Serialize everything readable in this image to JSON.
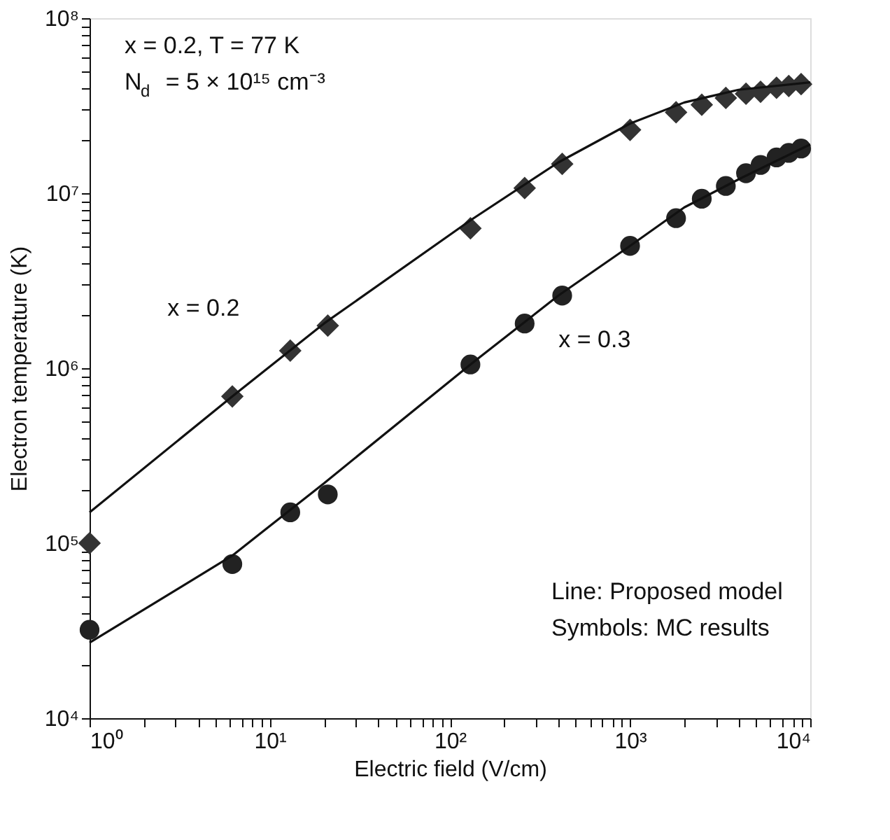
{
  "chart_data": {
    "type": "scatter",
    "xlabel": "Electric field (V/cm)",
    "ylabel": "Electron temperature (K)",
    "log": "xy",
    "xlim": [
      1,
      10000
    ],
    "ylim": [
      10000,
      100000000
    ],
    "xticks": [
      {
        "value": 1,
        "label": "10⁰"
      },
      {
        "value": 2,
        "label": null
      },
      {
        "value": 3,
        "label": null
      },
      {
        "value": 4,
        "label": null
      },
      {
        "value": 5,
        "label": null
      },
      {
        "value": 6,
        "label": null
      },
      {
        "value": 7,
        "label": null
      },
      {
        "value": 8,
        "label": null
      },
      {
        "value": 9,
        "label": null
      },
      {
        "value": 10,
        "label": "10¹"
      },
      {
        "value": 20,
        "label": null
      },
      {
        "value": 30,
        "label": null
      },
      {
        "value": 40,
        "label": null
      },
      {
        "value": 50,
        "label": null
      },
      {
        "value": 60,
        "label": null
      },
      {
        "value": 70,
        "label": null
      },
      {
        "value": 80,
        "label": null
      },
      {
        "value": 90,
        "label": null
      },
      {
        "value": 100,
        "label": "10²"
      },
      {
        "value": 200,
        "label": null
      },
      {
        "value": 300,
        "label": null
      },
      {
        "value": 400,
        "label": null
      },
      {
        "value": 500,
        "label": null
      },
      {
        "value": 600,
        "label": null
      },
      {
        "value": 700,
        "label": null
      },
      {
        "value": 800,
        "label": null
      },
      {
        "value": 900,
        "label": null
      },
      {
        "value": 1000,
        "label": "10³"
      },
      {
        "value": 2000,
        "label": null
      },
      {
        "value": 3000,
        "label": null
      },
      {
        "value": 4000,
        "label": null
      },
      {
        "value": 5000,
        "label": null
      },
      {
        "value": 6000,
        "label": null
      },
      {
        "value": 7000,
        "label": null
      },
      {
        "value": 8000,
        "label": null
      },
      {
        "value": 9000,
        "label": null
      },
      {
        "value": 10000,
        "label": "10⁴"
      }
    ],
    "yticks": [
      {
        "value": 10000,
        "label": "10⁴"
      },
      {
        "value": 20000,
        "label": null
      },
      {
        "value": 30000,
        "label": null
      },
      {
        "value": 40000,
        "label": null
      },
      {
        "value": 50000,
        "label": null
      },
      {
        "value": 60000,
        "label": null
      },
      {
        "value": 70000,
        "label": null
      },
      {
        "value": 80000,
        "label": null
      },
      {
        "value": 90000,
        "label": null
      },
      {
        "value": 100000,
        "label": "10⁵"
      },
      {
        "value": 200000,
        "label": null
      },
      {
        "value": 300000,
        "label": null
      },
      {
        "value": 400000,
        "label": null
      },
      {
        "value": 500000,
        "label": null
      },
      {
        "value": 600000,
        "label": null
      },
      {
        "value": 700000,
        "label": null
      },
      {
        "value": 800000,
        "label": null
      },
      {
        "value": 900000,
        "label": null
      },
      {
        "value": 1000000,
        "label": "10⁶"
      },
      {
        "value": 2000000,
        "label": null
      },
      {
        "value": 3000000,
        "label": null
      },
      {
        "value": 4000000,
        "label": null
      },
      {
        "value": 5000000,
        "label": null
      },
      {
        "value": 6000000,
        "label": null
      },
      {
        "value": 7000000,
        "label": null
      },
      {
        "value": 8000000,
        "label": null
      },
      {
        "value": 9000000,
        "label": null
      },
      {
        "value": 10000000,
        "label": "10⁷"
      },
      {
        "value": 20000000,
        "label": null
      },
      {
        "value": 30000000,
        "label": null
      },
      {
        "value": 40000000,
        "label": null
      },
      {
        "value": 50000000,
        "label": null
      },
      {
        "value": 60000000,
        "label": null
      },
      {
        "value": 70000000,
        "label": null
      },
      {
        "value": 80000000,
        "label": null
      },
      {
        "value": 90000000,
        "label": null
      },
      {
        "value": 100000000,
        "label": "10⁸"
      }
    ],
    "grid": false,
    "legend": false,
    "x": [
      1,
      6.2,
      13,
      21,
      130,
      260,
      420,
      1000,
      1800,
      2500,
      3400,
      4400,
      5300,
      6500,
      7600,
      8900
    ],
    "series": [
      {
        "name": "x = 0.2",
        "type": "scatter",
        "marker": "diamond",
        "color": "#333333",
        "values": [
          100000,
          690000,
          1260000,
          1750000,
          6300000,
          10700000,
          14700000,
          23000000,
          29000000,
          32000000,
          35000000,
          37000000,
          38000000,
          40000000,
          41000000,
          42000000
        ]
      },
      {
        "name": "x = 0.3",
        "type": "scatter",
        "marker": "circle",
        "color": "#222222",
        "values": [
          32000,
          76000,
          150000,
          190000,
          1050000,
          1800000,
          2600000,
          5000000,
          7200000,
          9300000,
          11000000,
          13000000,
          14500000,
          16000000,
          17000000,
          18000000
        ]
      },
      {
        "type": "line",
        "color": "#111111",
        "line_style": "solid",
        "marker": "none",
        "x": [
          1,
          6.2,
          20,
          130,
          400,
          1000,
          2000,
          4000,
          10000
        ],
        "values": [
          150000,
          690000,
          1800000,
          7000000,
          15000000,
          25000000,
          33000000,
          39000000,
          43000000
        ]
      },
      {
        "type": "line",
        "color": "#111111",
        "line_style": "solid",
        "marker": "none",
        "x": [
          1,
          6.2,
          20,
          130,
          400,
          1000,
          2000,
          4000,
          10000
        ],
        "values": [
          27000,
          85000,
          220000,
          1050000,
          2600000,
          5000000,
          8300000,
          12000000,
          19000000
        ]
      }
    ],
    "annotations": [
      "x = 0.2, T = 77 K",
      "N$_{d}$ = 5 × 10¹⁵ cm⁻³",
      "Line: Proposed model",
      "Symbols: MC results"
    ]
  }
}
